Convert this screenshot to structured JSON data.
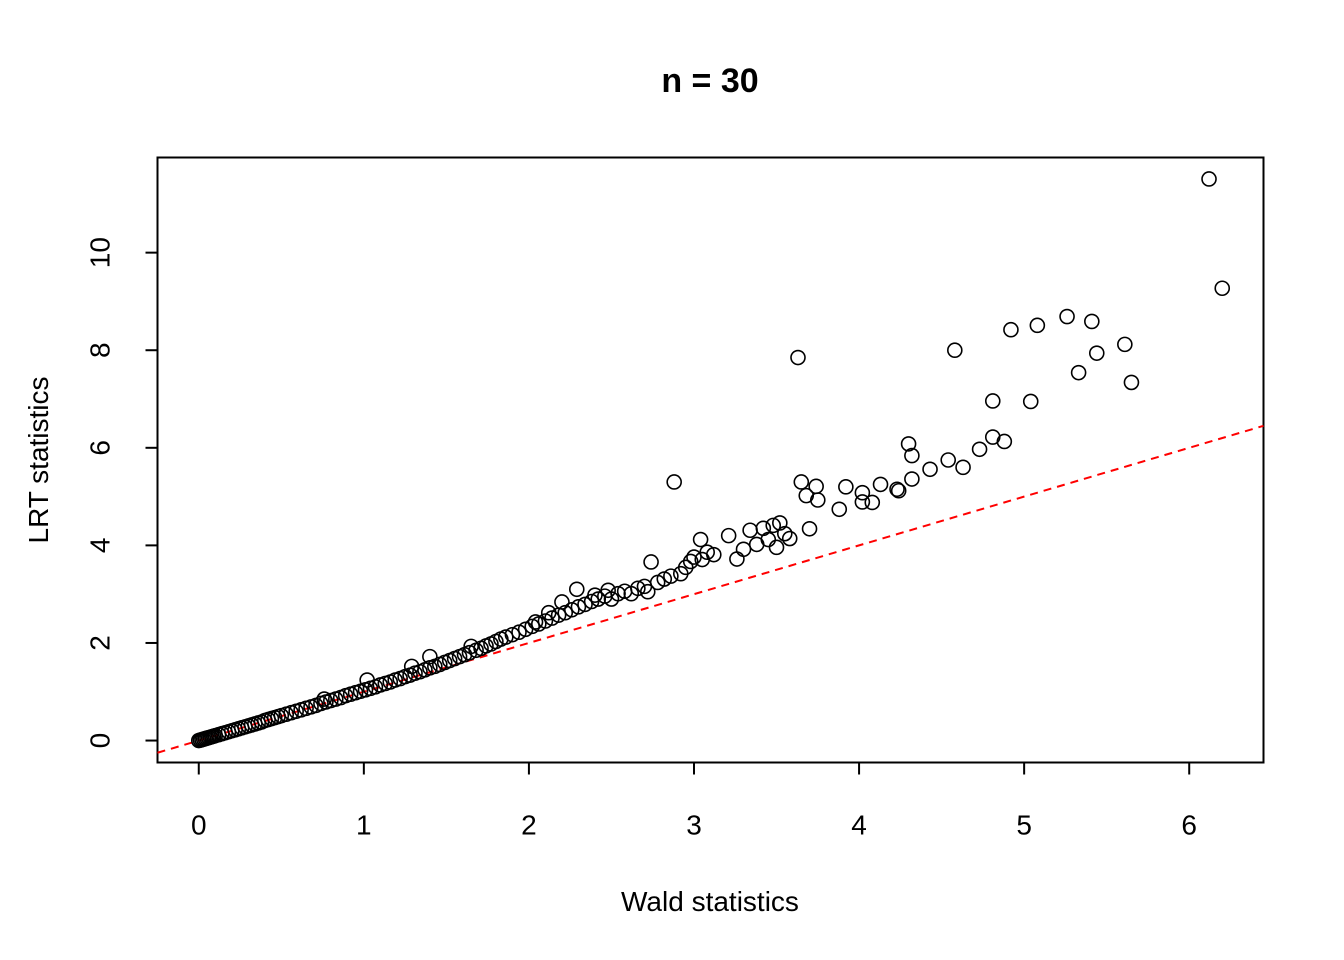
{
  "chart_data": {
    "type": "scatter",
    "title": "n = 30",
    "xlabel": "Wald statistics",
    "ylabel": "LRT statistics",
    "xlim": [
      -0.25,
      6.45
    ],
    "ylim": [
      -0.45,
      11.95
    ],
    "x_ticks": [
      0,
      1,
      2,
      3,
      4,
      5,
      6
    ],
    "y_ticks": [
      0,
      2,
      4,
      6,
      8,
      10
    ],
    "x_tick_labels": [
      "0",
      "1",
      "2",
      "3",
      "4",
      "5",
      "6"
    ],
    "y_tick_labels": [
      "0",
      "2",
      "4",
      "6",
      "8",
      "10"
    ],
    "reference_line": {
      "type": "identity",
      "slope": 1,
      "intercept": 0,
      "color": "#ff0000",
      "dashed": true
    },
    "grid": false,
    "legend": "none",
    "point_color": "#000000",
    "series": [
      {
        "points": [
          [
            0.0,
            0.0
          ],
          [
            0.01,
            0.01
          ],
          [
            0.02,
            0.02
          ],
          [
            0.03,
            0.03
          ],
          [
            0.04,
            0.04
          ],
          [
            0.05,
            0.05
          ],
          [
            0.06,
            0.06
          ],
          [
            0.07,
            0.07
          ],
          [
            0.08,
            0.08
          ],
          [
            0.09,
            0.09
          ],
          [
            0.1,
            0.1
          ],
          [
            0.12,
            0.12
          ],
          [
            0.14,
            0.14
          ],
          [
            0.16,
            0.16
          ],
          [
            0.18,
            0.18
          ],
          [
            0.2,
            0.2
          ],
          [
            0.22,
            0.22
          ],
          [
            0.24,
            0.24
          ],
          [
            0.26,
            0.26
          ],
          [
            0.28,
            0.28
          ],
          [
            0.3,
            0.3
          ],
          [
            0.32,
            0.32
          ],
          [
            0.34,
            0.34
          ],
          [
            0.36,
            0.36
          ],
          [
            0.38,
            0.38
          ],
          [
            0.4,
            0.41
          ],
          [
            0.42,
            0.43
          ],
          [
            0.44,
            0.45
          ],
          [
            0.46,
            0.47
          ],
          [
            0.48,
            0.49
          ],
          [
            0.5,
            0.51
          ],
          [
            0.53,
            0.54
          ],
          [
            0.56,
            0.57
          ],
          [
            0.59,
            0.6
          ],
          [
            0.62,
            0.63
          ],
          [
            0.65,
            0.66
          ],
          [
            0.68,
            0.69
          ],
          [
            0.71,
            0.72
          ],
          [
            0.74,
            0.76
          ],
          [
            0.76,
            0.85
          ],
          [
            0.77,
            0.79
          ],
          [
            0.8,
            0.82
          ],
          [
            0.83,
            0.85
          ],
          [
            0.86,
            0.88
          ],
          [
            0.89,
            0.92
          ],
          [
            0.92,
            0.95
          ],
          [
            0.95,
            0.98
          ],
          [
            0.98,
            1.01
          ],
          [
            1.01,
            1.04
          ],
          [
            1.02,
            1.24
          ],
          [
            1.04,
            1.07
          ],
          [
            1.07,
            1.1
          ],
          [
            1.1,
            1.14
          ],
          [
            1.13,
            1.17
          ],
          [
            1.16,
            1.2
          ],
          [
            1.19,
            1.24
          ],
          [
            1.22,
            1.27
          ],
          [
            1.25,
            1.31
          ],
          [
            1.28,
            1.34
          ],
          [
            1.29,
            1.52
          ],
          [
            1.31,
            1.38
          ],
          [
            1.34,
            1.41
          ],
          [
            1.37,
            1.45
          ],
          [
            1.4,
            1.49
          ],
          [
            1.4,
            1.72
          ],
          [
            1.43,
            1.52
          ],
          [
            1.46,
            1.56
          ],
          [
            1.49,
            1.6
          ],
          [
            1.52,
            1.64
          ],
          [
            1.55,
            1.68
          ],
          [
            1.58,
            1.72
          ],
          [
            1.61,
            1.76
          ],
          [
            1.64,
            1.8
          ],
          [
            1.65,
            1.93
          ],
          [
            1.68,
            1.85
          ],
          [
            1.71,
            1.89
          ],
          [
            1.74,
            1.94
          ],
          [
            1.77,
            1.98
          ],
          [
            1.8,
            2.03
          ],
          [
            1.83,
            2.08
          ],
          [
            1.86,
            2.12
          ],
          [
            1.9,
            2.17
          ],
          [
            1.94,
            2.22
          ],
          [
            1.98,
            2.28
          ],
          [
            2.02,
            2.34
          ],
          [
            2.04,
            2.43
          ],
          [
            2.06,
            2.39
          ],
          [
            2.1,
            2.45
          ],
          [
            2.12,
            2.62
          ],
          [
            2.14,
            2.51
          ],
          [
            2.18,
            2.57
          ],
          [
            2.2,
            2.84
          ],
          [
            2.22,
            2.62
          ],
          [
            2.26,
            2.68
          ],
          [
            2.29,
            3.1
          ],
          [
            2.3,
            2.74
          ],
          [
            2.34,
            2.79
          ],
          [
            2.38,
            2.85
          ],
          [
            2.4,
            2.98
          ],
          [
            2.42,
            2.9
          ],
          [
            2.46,
            2.96
          ],
          [
            2.48,
            3.08
          ],
          [
            2.5,
            2.9
          ],
          [
            2.54,
            3.01
          ],
          [
            2.58,
            3.06
          ],
          [
            2.62,
            3.01
          ],
          [
            2.66,
            3.12
          ],
          [
            2.7,
            3.16
          ],
          [
            2.72,
            3.05
          ],
          [
            2.74,
            3.66
          ],
          [
            2.78,
            3.24
          ],
          [
            2.82,
            3.31
          ],
          [
            2.86,
            3.37
          ],
          [
            2.88,
            5.3
          ],
          [
            2.92,
            3.42
          ],
          [
            2.95,
            3.55
          ],
          [
            2.98,
            3.67
          ],
          [
            3.0,
            3.76
          ],
          [
            3.04,
            4.12
          ],
          [
            3.05,
            3.71
          ],
          [
            3.08,
            3.86
          ],
          [
            3.12,
            3.81
          ],
          [
            3.21,
            4.2
          ],
          [
            3.26,
            3.72
          ],
          [
            3.3,
            3.92
          ],
          [
            3.34,
            4.31
          ],
          [
            3.38,
            4.02
          ],
          [
            3.42,
            4.35
          ],
          [
            3.45,
            4.12
          ],
          [
            3.48,
            4.41
          ],
          [
            3.5,
            3.96
          ],
          [
            3.52,
            4.46
          ],
          [
            3.55,
            4.24
          ],
          [
            3.58,
            4.14
          ],
          [
            3.63,
            7.85
          ],
          [
            3.65,
            5.3
          ],
          [
            3.68,
            5.02
          ],
          [
            3.7,
            4.34
          ],
          [
            3.74,
            5.21
          ],
          [
            3.75,
            4.93
          ],
          [
            3.88,
            4.74
          ],
          [
            3.92,
            5.2
          ],
          [
            4.02,
            5.08
          ],
          [
            4.02,
            4.89
          ],
          [
            4.08,
            4.88
          ],
          [
            4.13,
            5.25
          ],
          [
            4.23,
            5.15
          ],
          [
            4.24,
            5.12
          ],
          [
            4.3,
            6.08
          ],
          [
            4.32,
            5.84
          ],
          [
            4.32,
            5.36
          ],
          [
            4.43,
            5.56
          ],
          [
            4.54,
            5.75
          ],
          [
            4.58,
            8.0
          ],
          [
            4.63,
            5.6
          ],
          [
            4.73,
            5.97
          ],
          [
            4.81,
            6.22
          ],
          [
            4.81,
            6.96
          ],
          [
            4.88,
            6.13
          ],
          [
            4.92,
            8.42
          ],
          [
            5.04,
            6.95
          ],
          [
            5.08,
            8.51
          ],
          [
            5.26,
            8.69
          ],
          [
            5.33,
            7.54
          ],
          [
            5.41,
            8.59
          ],
          [
            5.44,
            7.94
          ],
          [
            5.61,
            8.12
          ],
          [
            5.65,
            7.34
          ],
          [
            6.12,
            11.51
          ],
          [
            6.2,
            9.27
          ]
        ]
      }
    ]
  }
}
